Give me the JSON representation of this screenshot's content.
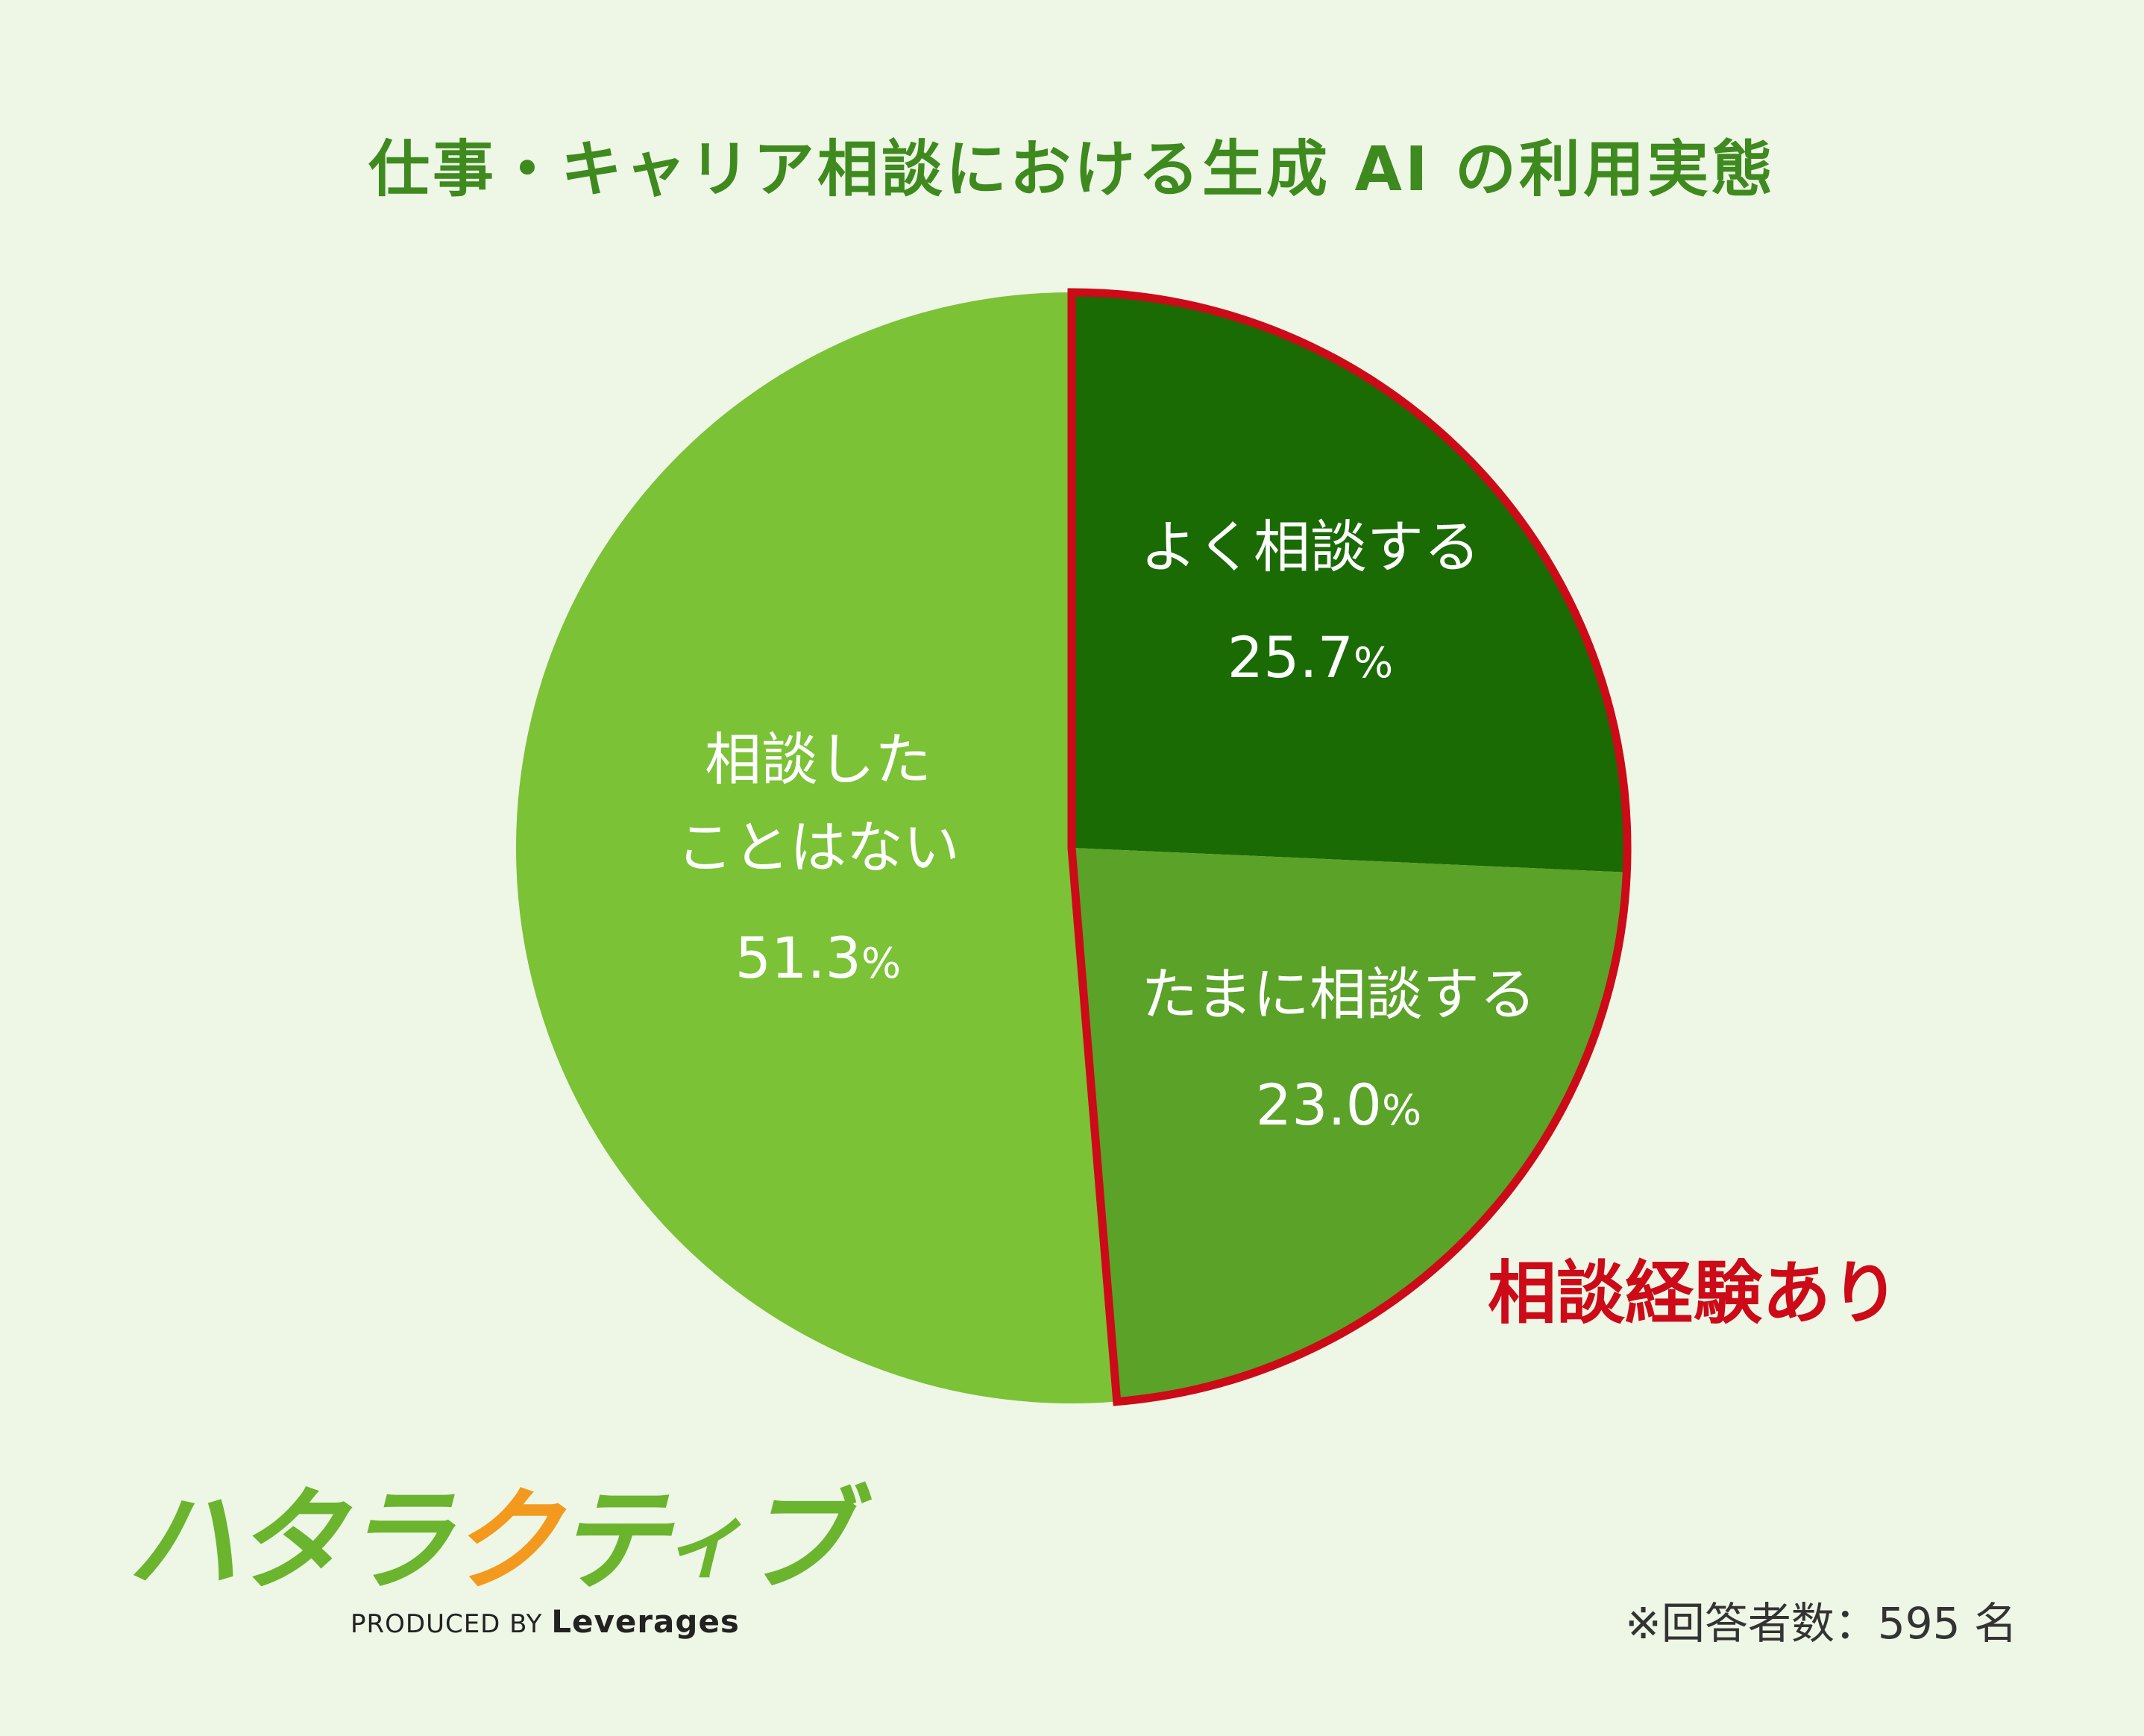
{
  "title": "仕事・キャリア相談における生成 AI の利用実態",
  "chart_data": {
    "type": "pie",
    "start_angle_deg": 0,
    "direction": "clockwise",
    "slices": [
      {
        "label_lines": [
          "よく相談する"
        ],
        "value": 25.7,
        "unit": "%",
        "color": "#1a6b04"
      },
      {
        "label_lines": [
          "たまに相談する"
        ],
        "value": 23.0,
        "unit": "%",
        "color": "#5aa228"
      },
      {
        "label_lines": [
          "相談した",
          "ことはない"
        ],
        "value": 51.3,
        "unit": "%",
        "color": "#7bc236"
      }
    ],
    "highlight": {
      "label": "相談経験あり",
      "slices": [
        0,
        1
      ],
      "color": "#cc0a18"
    }
  },
  "logo": {
    "chars": [
      "ハ",
      "タ",
      "ラ",
      "ク",
      "テ",
      "ィ",
      "ブ"
    ],
    "colors": [
      "#6ab42e",
      "#6ab42e",
      "#6ab42e",
      "#f39a1e",
      "#6ab42e",
      "#6ab42e",
      "#6ab42e"
    ],
    "produced_by": "PRODUCED BY",
    "company": "Leverages"
  },
  "note": "※回答者数：595 名"
}
